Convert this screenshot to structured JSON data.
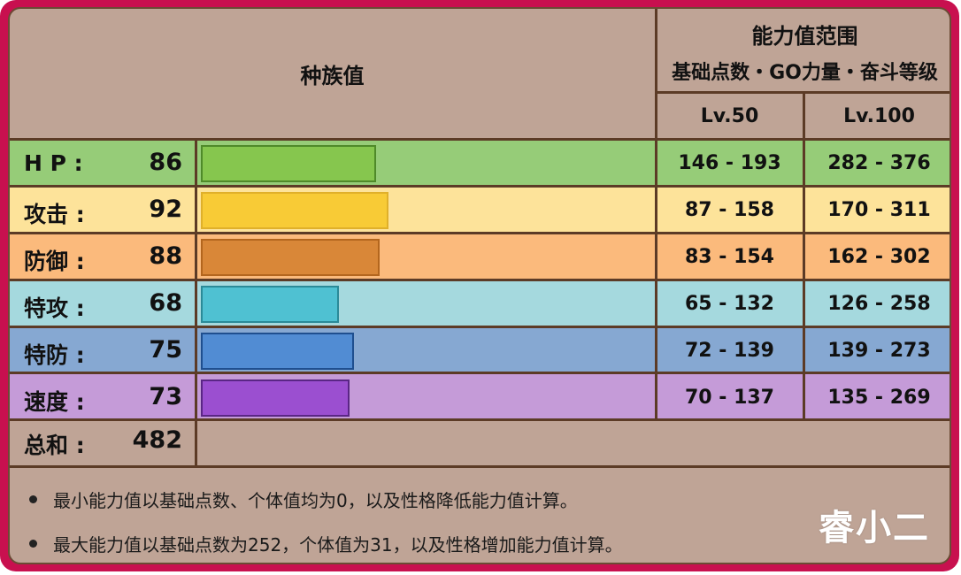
{
  "header": {
    "base_stats_title": "种族值",
    "range_title": "能力值范围",
    "range_subtitle": "基础点数・GO力量・奋斗等级",
    "lv50_label": "Lv.50",
    "lv100_label": "Lv.100"
  },
  "stats": [
    {
      "label": "H P :",
      "value": "86",
      "lv50": "146 - 193",
      "lv100": "282 - 376",
      "row_color": "#96cc78",
      "bar_color": "#86c64e",
      "bar_border": "#4f8a2a"
    },
    {
      "label": "攻击 :",
      "value": "92",
      "lv50": "87 - 158",
      "lv100": "170 - 311",
      "row_color": "#fde39a",
      "bar_color": "#f8cb36",
      "bar_border": "#e0b02a"
    },
    {
      "label": "防御 :",
      "value": "88",
      "lv50": "83 - 154",
      "lv100": "162 - 302",
      "row_color": "#fbba7c",
      "bar_color": "#d98738",
      "bar_border": "#b3661e"
    },
    {
      "label": "特攻 :",
      "value": "68",
      "lv50": "65 - 132",
      "lv100": "126 - 258",
      "row_color": "#a5d9de",
      "bar_color": "#4fc1d2",
      "bar_border": "#2b8a98"
    },
    {
      "label": "特防 :",
      "value": "75",
      "lv50": "72 - 139",
      "lv100": "139 - 273",
      "row_color": "#86a8d2",
      "bar_color": "#518cd3",
      "bar_border": "#1f4f8f"
    },
    {
      "label": "速度 :",
      "value": "73",
      "lv50": "70 - 137",
      "lv100": "135 - 269",
      "row_color": "#c59bd8",
      "bar_color": "#9b4fd0",
      "bar_border": "#5a2685"
    }
  ],
  "total": {
    "label": "总和 :",
    "value": "482"
  },
  "notes": [
    "最小能力值以基础点数、个体值均为0，以及性格降低能力值计算。",
    "最大能力值以基础点数为252，个体值为31，以及性格增加能力值计算。"
  ],
  "watermark": "睿小二",
  "colors": {
    "frame": "#c8104f",
    "background": "#bfa496",
    "grid": "#5c3b26"
  },
  "chart_data": {
    "type": "bar",
    "title": "种族值",
    "categories": [
      "HP",
      "攻击",
      "防御",
      "特攻",
      "特防",
      "速度"
    ],
    "values": [
      86,
      92,
      88,
      68,
      75,
      73
    ],
    "total": 482,
    "xlabel": "",
    "ylabel": "",
    "orientation": "horizontal"
  }
}
